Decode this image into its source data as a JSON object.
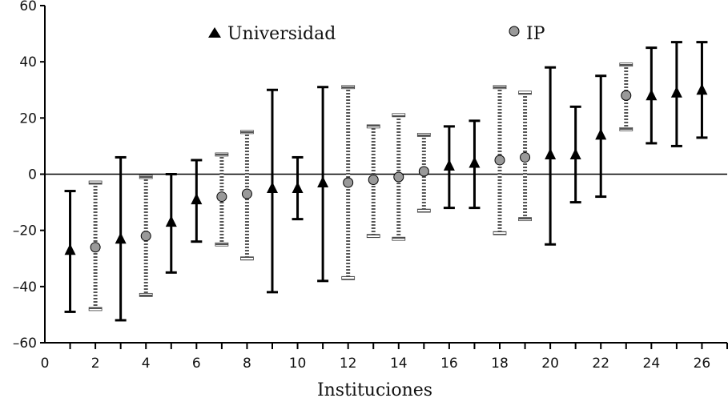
{
  "chart_data": {
    "type": "scatter",
    "title": "",
    "xlabel": "Instituciones",
    "ylabel": "",
    "xlim": [
      0,
      27
    ],
    "ylim": [
      -60,
      60
    ],
    "xticks": [
      0,
      2,
      4,
      6,
      8,
      10,
      12,
      14,
      16,
      18,
      20,
      22,
      24,
      26
    ],
    "yticks": [
      -60,
      -40,
      -20,
      0,
      20,
      40,
      60
    ],
    "grid": false,
    "legend_position": "top",
    "series": [
      {
        "name": "Universidad",
        "marker": "triangle",
        "color": "#000000",
        "points": [
          {
            "x": 1,
            "y": -27,
            "low": -49,
            "high": -6
          },
          {
            "x": 3,
            "y": -23,
            "low": -52,
            "high": 6
          },
          {
            "x": 5,
            "y": -17,
            "low": -35,
            "high": 0
          },
          {
            "x": 6,
            "y": -9,
            "low": -24,
            "high": 5
          },
          {
            "x": 9,
            "y": -5,
            "low": -42,
            "high": 30
          },
          {
            "x": 10,
            "y": -5,
            "low": -16,
            "high": 6
          },
          {
            "x": 11,
            "y": -3,
            "low": -38,
            "high": 31
          },
          {
            "x": 16,
            "y": 3,
            "low": -12,
            "high": 17
          },
          {
            "x": 17,
            "y": 4,
            "low": -12,
            "high": 19
          },
          {
            "x": 20,
            "y": 7,
            "low": -25,
            "high": 38
          },
          {
            "x": 21,
            "y": 7,
            "low": -10,
            "high": 24
          },
          {
            "x": 22,
            "y": 14,
            "low": -8,
            "high": 35
          },
          {
            "x": 24,
            "y": 28,
            "low": 11,
            "high": 45
          },
          {
            "x": 25,
            "y": 29,
            "low": 10,
            "high": 47
          },
          {
            "x": 26,
            "y": 30,
            "low": 13,
            "high": 47
          }
        ]
      },
      {
        "name": "IP",
        "marker": "circle",
        "color": "#999999",
        "points": [
          {
            "x": 2,
            "y": -26,
            "low": -48,
            "high": -3
          },
          {
            "x": 4,
            "y": -22,
            "low": -43,
            "high": -1
          },
          {
            "x": 7,
            "y": -8,
            "low": -25,
            "high": 7
          },
          {
            "x": 8,
            "y": -7,
            "low": -30,
            "high": 15
          },
          {
            "x": 12,
            "y": -3,
            "low": -37,
            "high": 31
          },
          {
            "x": 13,
            "y": -2,
            "low": -22,
            "high": 17
          },
          {
            "x": 14,
            "y": -1,
            "low": -23,
            "high": 21
          },
          {
            "x": 15,
            "y": 1,
            "low": -13,
            "high": 14
          },
          {
            "x": 18,
            "y": 5,
            "low": -21,
            "high": 31
          },
          {
            "x": 19,
            "y": 6,
            "low": -16,
            "high": 29
          },
          {
            "x": 23,
            "y": 28,
            "low": 16,
            "high": 39
          }
        ]
      }
    ]
  }
}
